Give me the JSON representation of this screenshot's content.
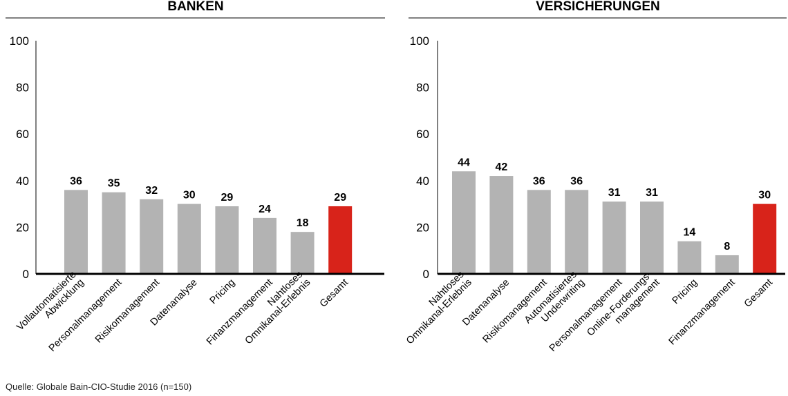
{
  "source": "Quelle: Globale Bain-CIO-Studie 2016 (n=150)",
  "colors": {
    "bar": "#b3b3b3",
    "highlight": "#d8231a",
    "axis": "#000000"
  },
  "chart_data": [
    {
      "type": "bar",
      "title": "BANKEN",
      "ylim": [
        0,
        100
      ],
      "yticks": [
        0,
        20,
        40,
        60,
        80,
        100
      ],
      "grid": false,
      "categories": [
        [
          "Vollautomatisierte",
          "Abwicklung"
        ],
        [
          "Personalmanagement"
        ],
        [
          "Risikomanagement"
        ],
        [
          "Datenanalyse"
        ],
        [
          "Pricing"
        ],
        [
          "Finanzmanagement"
        ],
        [
          "Nahtloses",
          "Omnikanal-Erlebnis"
        ],
        [
          "Gesamt"
        ]
      ],
      "values": [
        36,
        35,
        32,
        30,
        29,
        24,
        18,
        29
      ],
      "highlight_index": 7
    },
    {
      "type": "bar",
      "title": "VERSICHERUNGEN",
      "ylim": [
        0,
        100
      ],
      "yticks": [
        0,
        20,
        40,
        60,
        80,
        100
      ],
      "grid": false,
      "categories": [
        [
          "Nahtloses",
          "Omnikanal-Erlebnis"
        ],
        [
          "Datenanalyse"
        ],
        [
          "Risikomanagement"
        ],
        [
          "Automatisiertes",
          "Underwriting"
        ],
        [
          "Personalmanagement"
        ],
        [
          "Online-Forderungs-",
          "management"
        ],
        [
          "Pricing"
        ],
        [
          "Finanzmanagement"
        ],
        [
          "Gesamt"
        ]
      ],
      "values": [
        44,
        42,
        36,
        36,
        31,
        31,
        14,
        8,
        30
      ],
      "highlight_index": 8
    }
  ]
}
